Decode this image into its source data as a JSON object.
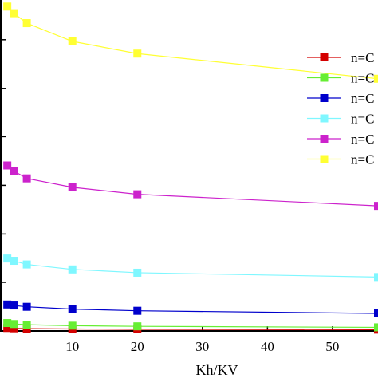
{
  "chart_data": {
    "type": "line",
    "xlabel": "Kh/KV",
    "ylabel": "",
    "title": "",
    "xlim": [
      -1,
      57
    ],
    "ylim": [
      0,
      100
    ],
    "xticks": [
      10,
      20,
      30,
      40,
      50
    ],
    "xtick_labels": [
      "10",
      "20",
      "30",
      "40",
      "50"
    ],
    "y_tick_values": [
      0,
      14.7,
      29.3,
      44.0,
      58.7,
      73.3,
      88.0
    ],
    "grid": false,
    "legend_position": "top-right",
    "series": [
      {
        "name": "n=C",
        "color": "#d40000",
        "x": [
          0,
          1,
          3,
          10,
          20,
          57
        ],
        "y": [
          0.9,
          0.8,
          0.7,
          0.6,
          0.5,
          0.4
        ]
      },
      {
        "name": "n=C",
        "color": "#66ee33",
        "x": [
          0,
          1,
          3,
          10,
          20,
          57
        ],
        "y": [
          2.4,
          2.1,
          1.9,
          1.6,
          1.4,
          1.1
        ]
      },
      {
        "name": "n=C",
        "color": "#0000cc",
        "x": [
          0,
          1,
          3,
          10,
          20,
          57
        ],
        "y": [
          8.0,
          7.7,
          7.3,
          6.6,
          6.1,
          5.3
        ]
      },
      {
        "name": "n=C",
        "color": "#7ff7ff",
        "x": [
          0,
          1,
          3,
          10,
          20,
          57
        ],
        "y": [
          21.9,
          21.2,
          20.1,
          18.6,
          17.6,
          16.3
        ]
      },
      {
        "name": "n=C",
        "color": "#cc22cc",
        "x": [
          0,
          1,
          3,
          10,
          20,
          57
        ],
        "y": [
          50.0,
          48.3,
          46.1,
          43.4,
          41.3,
          37.8
        ]
      },
      {
        "name": "n=C",
        "color": "#ffff33",
        "x": [
          0,
          1,
          3,
          10,
          20,
          57
        ],
        "y": [
          98.0,
          96.0,
          93.0,
          87.5,
          83.8,
          76.2
        ]
      }
    ]
  }
}
